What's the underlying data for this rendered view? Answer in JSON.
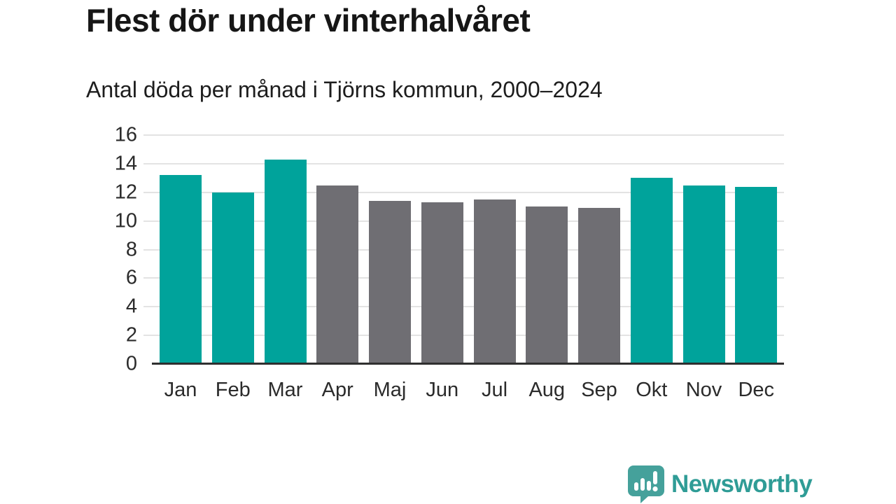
{
  "chart_data": {
    "type": "bar",
    "title": "Flest dör under vinterhalvåret",
    "subtitle": "Antal döda per månad i Tjörns kommun, 2000–2024",
    "categories": [
      "Jan",
      "Feb",
      "Mar",
      "Apr",
      "Maj",
      "Jun",
      "Jul",
      "Aug",
      "Sep",
      "Okt",
      "Nov",
      "Dec"
    ],
    "values": [
      13.2,
      12.0,
      14.3,
      12.5,
      11.4,
      11.3,
      11.5,
      11.0,
      10.9,
      13.0,
      12.5,
      12.4
    ],
    "groups": [
      "winter",
      "winter",
      "winter",
      "summer",
      "summer",
      "summer",
      "summer",
      "summer",
      "summer",
      "winter",
      "winter",
      "winter"
    ],
    "colors": {
      "winter": "#00A39B",
      "summer": "#6F6E73"
    },
    "xlabel": "",
    "ylabel": "",
    "ylim": [
      0,
      16
    ],
    "yticks": [
      0,
      2,
      4,
      6,
      8,
      10,
      12,
      14,
      16
    ],
    "grid": "horizontal",
    "gridline_color": "#E3E3E3",
    "axis_line_color": "#2F2F2F",
    "legend": "none"
  },
  "footer": {
    "brand": "Newsworthy",
    "brand_color": "#2F9C96",
    "logo_icon": "bar-chart-speech-bubble-icon",
    "logo_icon_color": "#45A19B"
  }
}
